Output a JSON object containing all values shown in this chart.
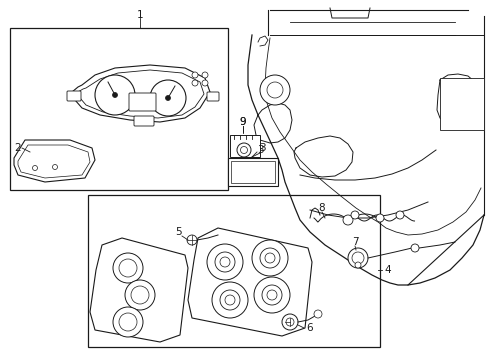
{
  "background_color": "#ffffff",
  "line_color": "#000000",
  "fig_width": 4.89,
  "fig_height": 3.6,
  "dpi": 100,
  "label_fontsize": 7.5
}
